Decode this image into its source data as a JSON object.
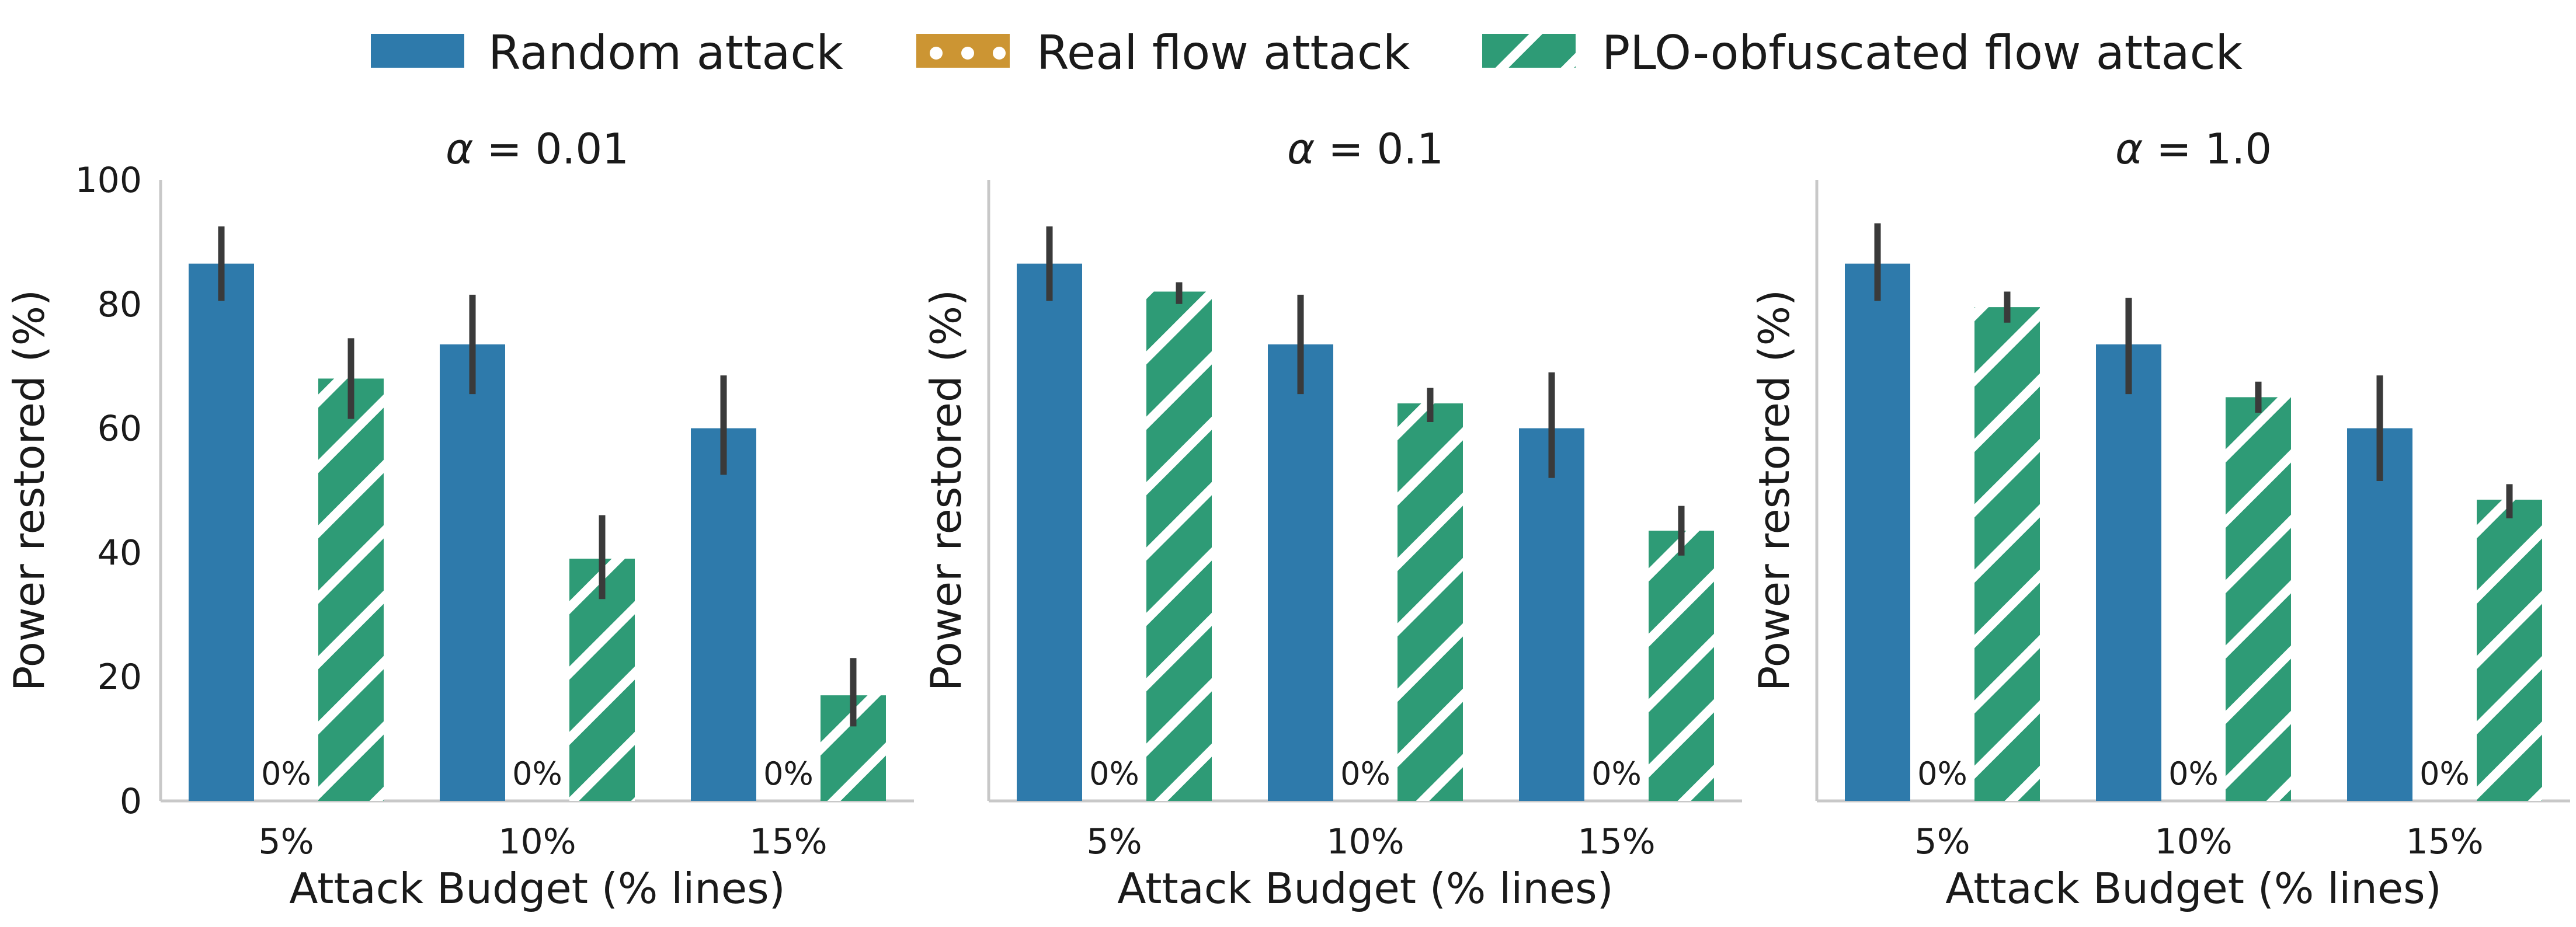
{
  "chart_data": {
    "type": "bar",
    "legend": {
      "position": "top-center",
      "entries": [
        "Random attack",
        "Real flow attack",
        "PLO-obfuscated flow attack"
      ]
    },
    "colors": {
      "Random attack": "#2e7aab",
      "Real flow attack": "#cc9533",
      "PLO-obfuscated flow attack": "#2e9b76",
      "hatch": "#ffffff"
    },
    "categories": [
      "5%",
      "10%",
      "15%"
    ],
    "xlabel": "Attack Budget (% lines)",
    "ylabel": "Power restored (%)",
    "ylim": [
      0,
      100
    ],
    "yticks": [
      0,
      20,
      40,
      60,
      80,
      100
    ],
    "grid": false,
    "panels": [
      {
        "title_symbol": "α",
        "title_rest": " = 0.01",
        "series": [
          {
            "name": "Random attack",
            "values": [
              86.5,
              73.5,
              60.0
            ],
            "err_low": [
              80.5,
              65.5,
              52.5
            ],
            "err_high": [
              92.5,
              81.5,
              68.5
            ]
          },
          {
            "name": "Real flow attack",
            "values": [
              0,
              0,
              0
            ],
            "labels": [
              "0%",
              "0%",
              "0%"
            ]
          },
          {
            "name": "PLO-obfuscated flow attack",
            "values": [
              68.0,
              39.0,
              17.0
            ],
            "err_low": [
              61.5,
              32.5,
              12.0
            ],
            "err_high": [
              74.5,
              46.0,
              23.0
            ]
          }
        ]
      },
      {
        "title_symbol": "α",
        "title_rest": " = 0.1",
        "series": [
          {
            "name": "Random attack",
            "values": [
              86.5,
              73.5,
              60.0
            ],
            "err_low": [
              80.5,
              65.5,
              52.0
            ],
            "err_high": [
              92.5,
              81.5,
              69.0
            ]
          },
          {
            "name": "Real flow attack",
            "values": [
              0,
              0,
              0
            ],
            "labels": [
              "0%",
              "0%",
              "0%"
            ]
          },
          {
            "name": "PLO-obfuscated flow attack",
            "values": [
              82.0,
              64.0,
              43.5
            ],
            "err_low": [
              80.0,
              61.0,
              39.5
            ],
            "err_high": [
              83.5,
              66.5,
              47.5
            ]
          }
        ]
      },
      {
        "title_symbol": "α",
        "title_rest": " = 1.0",
        "series": [
          {
            "name": "Random attack",
            "values": [
              86.5,
              73.5,
              60.0
            ],
            "err_low": [
              80.5,
              65.5,
              51.5
            ],
            "err_high": [
              93.0,
              81.0,
              68.5
            ]
          },
          {
            "name": "Real flow attack",
            "values": [
              0,
              0,
              0
            ],
            "labels": [
              "0%",
              "0%",
              "0%"
            ]
          },
          {
            "name": "PLO-obfuscated flow attack",
            "values": [
              79.5,
              65.0,
              48.5
            ],
            "err_low": [
              77.0,
              62.5,
              45.5
            ],
            "err_high": [
              82.0,
              67.5,
              51.0
            ]
          }
        ]
      }
    ]
  }
}
